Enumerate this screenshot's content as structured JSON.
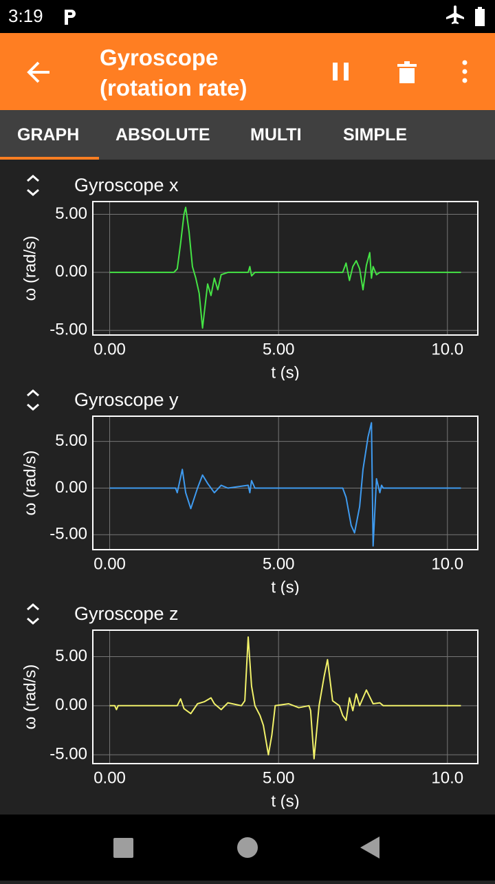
{
  "status_bar": {
    "time": "3:19"
  },
  "toolbar": {
    "title": "Gyroscope (rotation rate)"
  },
  "tabs": [
    "GRAPH",
    "ABSOLUTE",
    "MULTI",
    "SIMPLE"
  ],
  "chart_data": [
    {
      "type": "line",
      "title": "Gyroscope x",
      "xlabel": "t (s)",
      "ylabel": "ω (rad/s)",
      "color": "#45e445",
      "grid": true,
      "xlim": [
        -0.5,
        10.9
      ],
      "ylim": [
        -5.4,
        6.1
      ],
      "xticks": [
        {
          "value": 0,
          "label": "0.00"
        },
        {
          "value": 5,
          "label": "5.00"
        },
        {
          "value": 10,
          "label": "10.0"
        }
      ],
      "yticks": [
        {
          "value": -5,
          "label": "-5.00"
        },
        {
          "value": 0,
          "label": "0.00"
        },
        {
          "value": 5,
          "label": "5.00"
        }
      ],
      "x": [
        0,
        1.9,
        2.0,
        2.1,
        2.2,
        2.25,
        2.35,
        2.45,
        2.55,
        2.65,
        2.75,
        2.8,
        2.9,
        3.0,
        3.1,
        3.2,
        3.3,
        3.5,
        4.1,
        4.15,
        4.2,
        4.3,
        6.9,
        7.0,
        7.1,
        7.2,
        7.3,
        7.4,
        7.5,
        7.6,
        7.7,
        7.75,
        7.8,
        7.9,
        8.0,
        10.4
      ],
      "values": [
        0,
        0,
        0.3,
        2.5,
        5,
        5.6,
        3.5,
        0.5,
        -0.5,
        -1.8,
        -4.8,
        -3.5,
        -1,
        -2,
        -0.5,
        -1.5,
        -0.2,
        0,
        0,
        0.5,
        -0.3,
        0,
        0,
        0.8,
        -0.7,
        0.5,
        1,
        0.3,
        -1.5,
        0.6,
        1.7,
        -0.5,
        0.5,
        -0.2,
        0,
        0
      ]
    },
    {
      "type": "line",
      "title": "Gyroscope y",
      "xlabel": "t (s)",
      "ylabel": "ω (rad/s)",
      "color": "#3f9bf0",
      "grid": true,
      "xlim": [
        -0.5,
        10.9
      ],
      "ylim": [
        -6.6,
        7.7
      ],
      "xticks": [
        {
          "value": 0,
          "label": "0.00"
        },
        {
          "value": 5,
          "label": "5.00"
        },
        {
          "value": 10,
          "label": "10.0"
        }
      ],
      "yticks": [
        {
          "value": -5,
          "label": "-5.00"
        },
        {
          "value": 0,
          "label": "0.00"
        },
        {
          "value": 5,
          "label": "5.00"
        }
      ],
      "x": [
        0,
        1.95,
        2.0,
        2.15,
        2.25,
        2.4,
        2.6,
        2.75,
        2.9,
        3.1,
        3.3,
        3.5,
        4.1,
        4.15,
        4.2,
        4.3,
        6.9,
        7.0,
        7.15,
        7.25,
        7.4,
        7.5,
        7.65,
        7.75,
        7.8,
        7.9,
        8.0,
        8.05,
        8.1,
        10.4
      ],
      "values": [
        0,
        0,
        -0.5,
        2.0,
        -0.5,
        -2.2,
        0,
        1.4,
        0.5,
        -0.5,
        0.3,
        0,
        0.3,
        -0.5,
        0.8,
        0,
        0,
        -1,
        -4,
        -4.8,
        -2,
        2,
        5.5,
        7.0,
        -6.2,
        1,
        -0.5,
        0.3,
        0,
        0
      ]
    },
    {
      "type": "line",
      "title": "Gyroscope z",
      "xlabel": "t (s)",
      "ylabel": "ω (rad/s)",
      "color": "#f2f26a",
      "grid": true,
      "xlim": [
        -0.5,
        10.9
      ],
      "ylim": [
        -5.9,
        7.7
      ],
      "xticks": [
        {
          "value": 0,
          "label": "0.00"
        },
        {
          "value": 5,
          "label": "5.00"
        },
        {
          "value": 10,
          "label": "10.0"
        }
      ],
      "yticks": [
        {
          "value": -5,
          "label": "-5.00"
        },
        {
          "value": 0,
          "label": "0.00"
        },
        {
          "value": 5,
          "label": "5.00"
        }
      ],
      "x": [
        0,
        0.15,
        0.2,
        0.25,
        2.0,
        2.1,
        2.2,
        2.4,
        2.6,
        2.8,
        3.0,
        3.1,
        3.3,
        3.5,
        3.9,
        4.0,
        4.1,
        4.2,
        4.3,
        4.45,
        4.55,
        4.7,
        4.8,
        4.9,
        5.3,
        5.6,
        5.9,
        5.95,
        6.05,
        6.2,
        6.35,
        6.45,
        6.6,
        6.8,
        6.9,
        7.0,
        7.1,
        7.2,
        7.3,
        7.4,
        7.6,
        7.8,
        8.0,
        8.1,
        10.4
      ],
      "values": [
        0,
        0,
        -0.4,
        0,
        0,
        0.7,
        -0.3,
        -0.8,
        0.2,
        0.4,
        0.8,
        0.2,
        -0.4,
        0.3,
        0,
        0.5,
        7.0,
        2,
        0,
        -1,
        -2,
        -5,
        -3,
        0,
        0.2,
        -0.2,
        0,
        -0.5,
        -5.4,
        0,
        3,
        4.7,
        0.5,
        0,
        -1,
        -1.5,
        0.8,
        -0.5,
        1.2,
        0,
        1.6,
        0.2,
        0.3,
        0,
        0
      ]
    }
  ]
}
